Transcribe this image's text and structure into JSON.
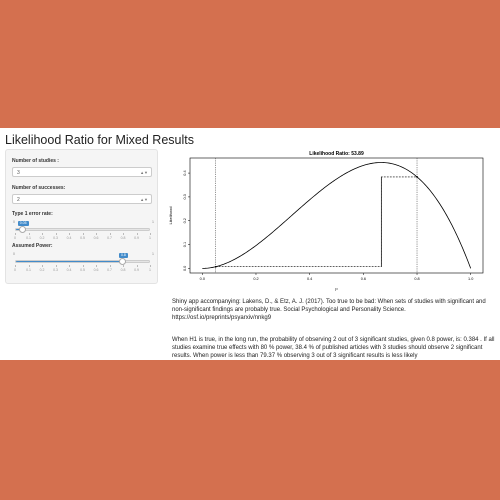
{
  "app_title": "Likelihood Ratio for Mixed Results",
  "inputs": {
    "num_studies": {
      "label": "Number of studies :",
      "value": "3"
    },
    "num_successes": {
      "label": "Number of successes:",
      "value": "2"
    }
  },
  "sliders": {
    "alpha": {
      "label": "Type 1 error rate:",
      "min": "0",
      "max": "1",
      "value": "0.05",
      "fraction": 0.05
    },
    "power": {
      "label": "Assumed Power:",
      "min": "0",
      "max": "1",
      "value": "0.8",
      "fraction": 0.8
    }
  },
  "slider_ticks": [
    "0",
    "0.1",
    "0.2",
    "0.3",
    "0.4",
    "0.5",
    "0.6",
    "0.7",
    "0.8",
    "0.9",
    "1"
  ],
  "chart_data": {
    "type": "line",
    "title": "Likelihood Ratio: 53.89",
    "xlabel": "p",
    "ylabel": "Likelihood",
    "xlim": [
      0,
      1
    ],
    "ylim": [
      0,
      0.444
    ],
    "xticks": [
      "0.0",
      "0.2",
      "0.4",
      "0.6",
      "0.8",
      "1.0"
    ],
    "yticks": [
      "0.0",
      "0.1",
      "0.2",
      "0.3",
      "0.4"
    ],
    "series": [
      {
        "formula": "3 * p^2 * (1 - p)",
        "x": [
          0,
          0.1,
          0.2,
          0.3,
          0.4,
          0.5,
          0.6,
          0.667,
          0.7,
          0.8,
          0.9,
          1.0
        ],
        "y": [
          0,
          0.027,
          0.096,
          0.189,
          0.288,
          0.375,
          0.432,
          0.444,
          0.441,
          0.384,
          0.243,
          0
        ]
      }
    ],
    "vlines": [
      0.05,
      0.8
    ],
    "points": [
      {
        "x": 0.05,
        "y": 0.007
      },
      {
        "x": 0.8,
        "y": 0.384
      }
    ],
    "dashed_step": {
      "x1": 0.05,
      "x2": 0.667,
      "y_low": 0.007,
      "y_high": 0.384
    }
  },
  "paragraphs": {
    "citation": "Shiny app accompanying: Lakens, D., & Etz, A. J. (2017). Too true to be bad: When sets of studies with significant and non-significant findings are probably true. Social Psychological and Personality Science. https://osf.io/preprints/psyarxiv/nnkg9",
    "explanation": "When H1 is true, in the long run, the probability of observing 2 out of 3 significant studies, given 0.8 power, is: 0.384 . If all studies examine true effects with 80 % power, 38.4 % of published articles with 3 studies should observe 2 significant results. When power is less than 79.37 % observing 3 out of 3 significant results is less likely"
  },
  "colors": {
    "background": "#D4704F",
    "accent": "#428bca"
  }
}
